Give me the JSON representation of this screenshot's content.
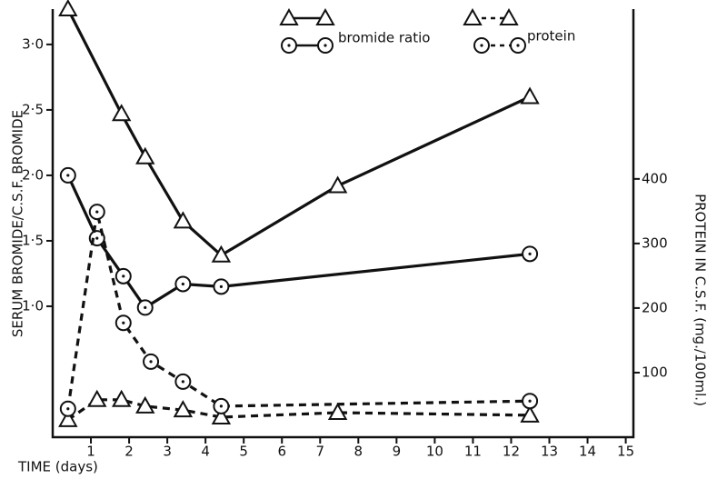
{
  "chart_data": {
    "type": "line",
    "xlabel": "TIME (days)",
    "ylabel": "SERUM BROMIDE/C.S.F. BROMIDE",
    "y2label": "PROTEIN IN C.S.F. (mg./100ml.)",
    "xlim": [
      0,
      15.2
    ],
    "xticks": [
      1,
      2,
      3,
      4,
      5,
      6,
      7,
      8,
      9,
      10,
      11,
      12,
      13,
      14,
      15
    ],
    "ylim": [
      0,
      3.27
    ],
    "yticks": [
      {
        "value": 1,
        "label": "1·0"
      },
      {
        "value": 1.5,
        "label": "1·5"
      },
      {
        "value": 2,
        "label": "2·0"
      },
      {
        "value": 2.5,
        "label": "2·5"
      },
      {
        "value": 3,
        "label": "3·0"
      }
    ],
    "y2lim": [
      0,
      663
    ],
    "y2ticks": [
      100,
      200,
      300,
      400
    ],
    "legend": [
      "bromide ratio",
      "protein"
    ],
    "color": "#111111",
    "series": [
      {
        "marker": "triangle",
        "dashed": false,
        "x": [
          0.4,
          1.8,
          2.42,
          3.41,
          4.41,
          7.46,
          12.49
        ],
        "values": [
          3.27,
          2.47,
          2.14,
          1.65,
          1.39,
          1.92,
          2.6
        ]
      },
      {
        "marker": "circle",
        "dashed": false,
        "x": [
          0.4,
          1.16,
          1.85,
          2.42,
          3.41,
          4.41,
          12.49
        ],
        "values": [
          2.0,
          1.52,
          1.23,
          0.99,
          1.17,
          1.15,
          1.4
        ]
      },
      {
        "marker": "triangle",
        "dashed": true,
        "axis": "y2",
        "x": [
          0.4,
          1.16,
          1.8,
          2.42,
          3.41,
          4.41,
          7.46,
          12.49
        ],
        "values": [
          27,
          58,
          58,
          48,
          42,
          31,
          38,
          34
        ]
      },
      {
        "marker": "circle",
        "dashed": true,
        "axis": "y2",
        "x": [
          0.4,
          1.16,
          1.85,
          2.57,
          3.41,
          4.41,
          12.49
        ],
        "values": [
          44,
          349,
          177,
          117,
          86,
          48,
          56
        ]
      }
    ]
  }
}
